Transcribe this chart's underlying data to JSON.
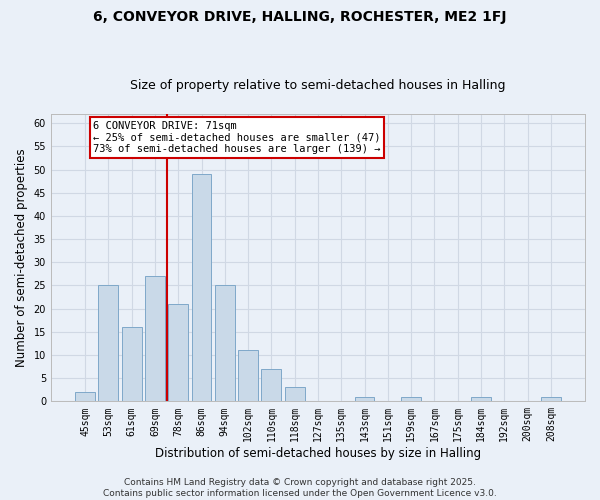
{
  "title": "6, CONVEYOR DRIVE, HALLING, ROCHESTER, ME2 1FJ",
  "subtitle": "Size of property relative to semi-detached houses in Halling",
  "xlabel": "Distribution of semi-detached houses by size in Halling",
  "ylabel": "Number of semi-detached properties",
  "categories": [
    "45sqm",
    "53sqm",
    "61sqm",
    "69sqm",
    "78sqm",
    "86sqm",
    "94sqm",
    "102sqm",
    "110sqm",
    "118sqm",
    "127sqm",
    "135sqm",
    "143sqm",
    "151sqm",
    "159sqm",
    "167sqm",
    "175sqm",
    "184sqm",
    "192sqm",
    "200sqm",
    "208sqm"
  ],
  "values": [
    2,
    25,
    16,
    27,
    21,
    49,
    25,
    11,
    7,
    3,
    0,
    0,
    1,
    0,
    1,
    0,
    0,
    1,
    0,
    0,
    1
  ],
  "bar_color": "#c9d9e8",
  "bar_edge_color": "#7fa8c9",
  "grid_color": "#d0d8e4",
  "background_color": "#eaf0f8",
  "property_line_x": 3.5,
  "property_label": "6 CONVEYOR DRIVE: 71sqm",
  "smaller_text": "← 25% of semi-detached houses are smaller (47)",
  "larger_text": "73% of semi-detached houses are larger (139) →",
  "annotation_box_facecolor": "#ffffff",
  "annotation_box_edgecolor": "#cc0000",
  "property_line_color": "#cc0000",
  "ylim": [
    0,
    62
  ],
  "yticks": [
    0,
    5,
    10,
    15,
    20,
    25,
    30,
    35,
    40,
    45,
    50,
    55,
    60
  ],
  "footer_line1": "Contains HM Land Registry data © Crown copyright and database right 2025.",
  "footer_line2": "Contains public sector information licensed under the Open Government Licence v3.0.",
  "title_fontsize": 10,
  "subtitle_fontsize": 9,
  "axis_label_fontsize": 8.5,
  "tick_fontsize": 7,
  "annotation_fontsize": 7.5,
  "footer_fontsize": 6.5
}
